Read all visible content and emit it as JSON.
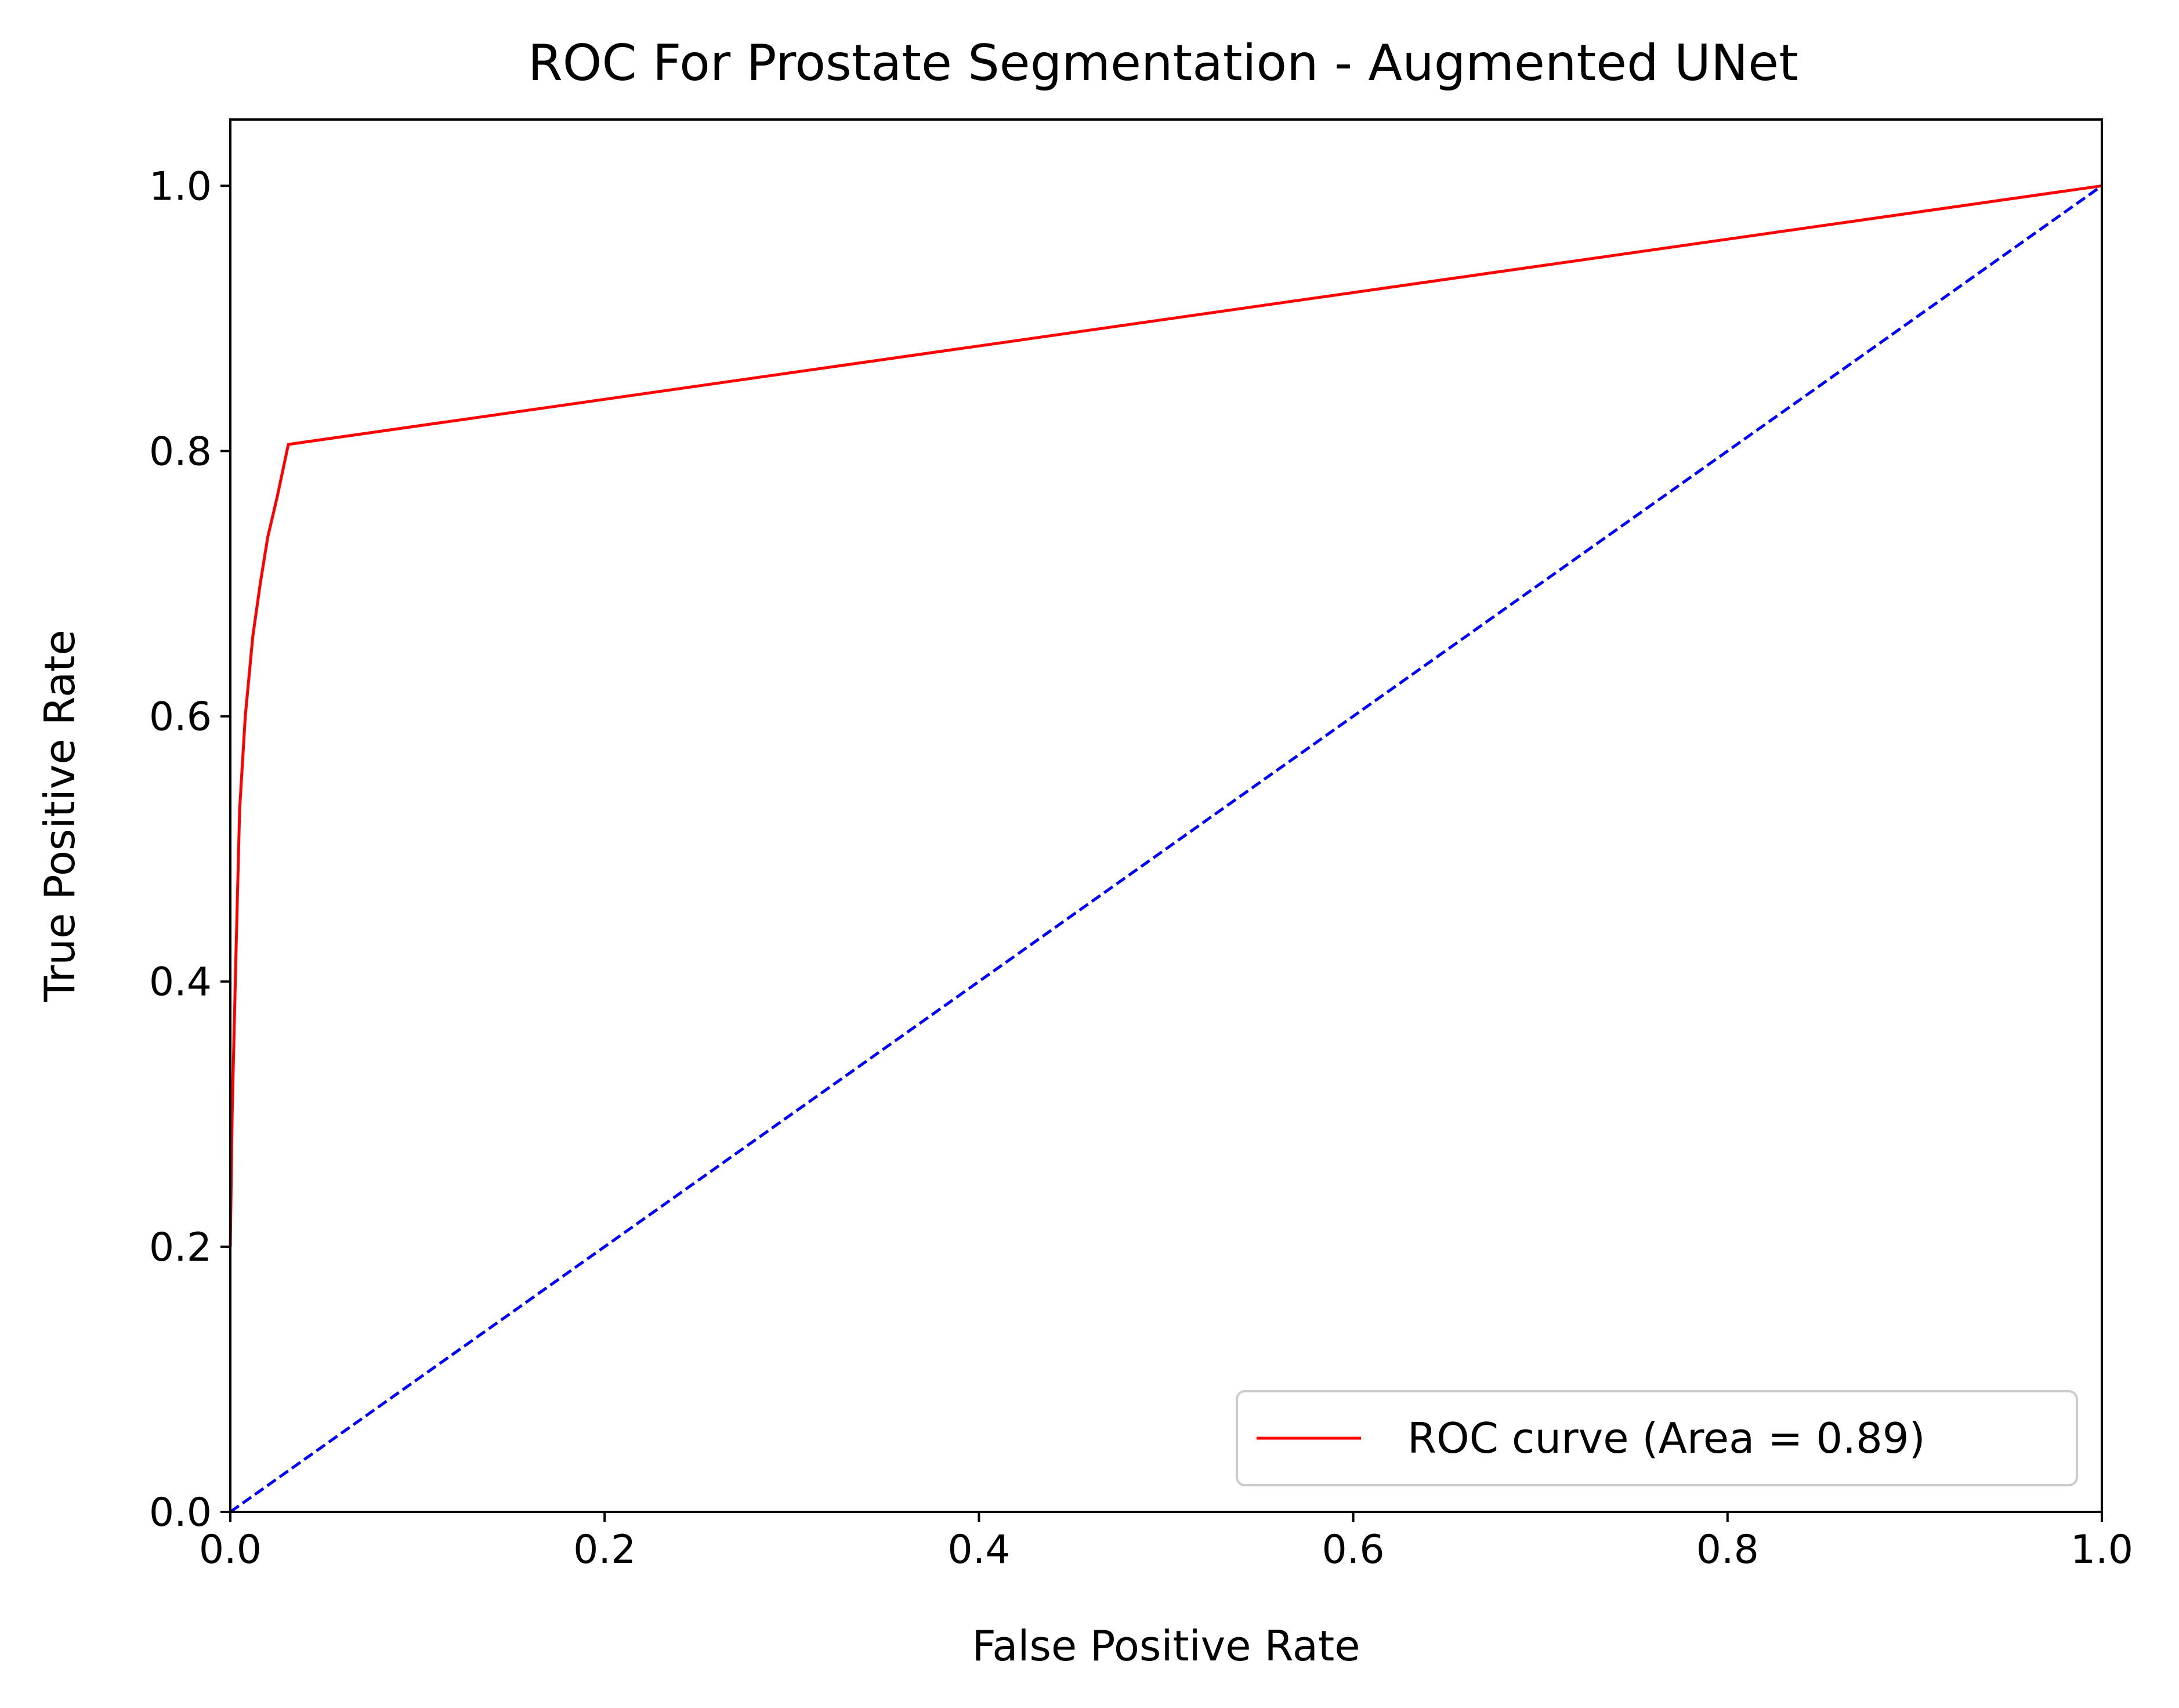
{
  "chart_data": {
    "type": "line",
    "title": "ROC For Prostate Segmentation - Augmented UNet",
    "xlabel": "False Positive Rate",
    "ylabel": "True Positive Rate",
    "xlim": [
      0.0,
      1.0
    ],
    "ylim": [
      0.0,
      1.05
    ],
    "xticks": [
      "0.0",
      "0.2",
      "0.4",
      "0.6",
      "0.8",
      "1.0"
    ],
    "yticks": [
      "0.0",
      "0.2",
      "0.4",
      "0.6",
      "0.8",
      "1.0"
    ],
    "grid": false,
    "legend_position": "lower-right",
    "series": [
      {
        "name": "ROC curve (Area = 0.89)",
        "color": "#ff0000",
        "style": "solid",
        "x": [
          0.0,
          0.001,
          0.003,
          0.005,
          0.008,
          0.012,
          0.016,
          0.02,
          0.025,
          0.031,
          1.0
        ],
        "y": [
          0.2,
          0.3,
          0.42,
          0.53,
          0.6,
          0.66,
          0.7,
          0.735,
          0.765,
          0.805,
          1.0
        ]
      },
      {
        "name": "",
        "color": "#0000ff",
        "style": "dashed",
        "x": [
          0.0,
          1.0
        ],
        "y": [
          0.0,
          1.0
        ]
      }
    ]
  }
}
